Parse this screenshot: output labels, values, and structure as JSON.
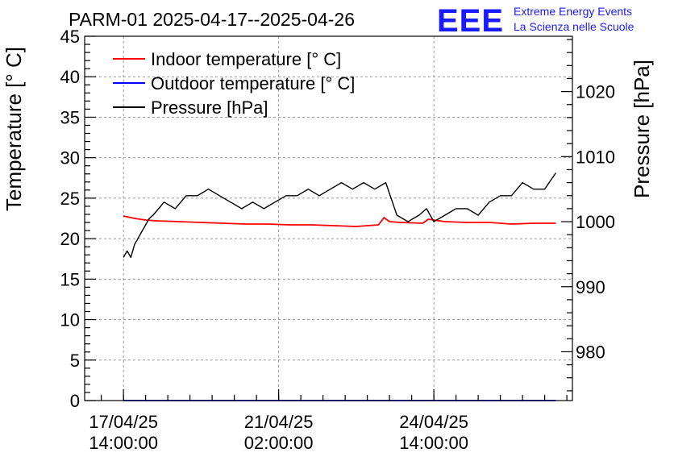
{
  "header": {
    "title": "PARM-01 2025-04-17--2025-04-26",
    "logo": {
      "mark": "EEE",
      "line1": "Extreme Energy Events",
      "line2": "La Scienza nelle Scuole",
      "color": "#1a1aff"
    }
  },
  "chart_data": {
    "type": "line",
    "title": "PARM-01 2025-04-17--2025-04-26",
    "ylabel": "Temperature [° C]",
    "y2label": "Pressure [hPa]",
    "ylim": [
      0,
      45
    ],
    "y2lim": [
      972.5,
      1028.5
    ],
    "xlim": [
      "2025-04-16 17:00",
      "2025-04-27 17:00"
    ],
    "grid": true,
    "legend_position": "top-left",
    "y_ticks": [
      "0",
      "5",
      "10",
      "15",
      "20",
      "25",
      "30",
      "35",
      "40",
      "45"
    ],
    "y2_ticks": [
      "980",
      "990",
      "1000",
      "1010",
      "1020"
    ],
    "x_tick_labels": [
      {
        "x": "2025-04-17 14:00",
        "date": "17/04/25",
        "time": "14:00:00"
      },
      {
        "x": "2025-04-21 02:00",
        "date": "21/04/25",
        "time": "02:00:00"
      },
      {
        "x": "2025-04-24 14:00",
        "date": "24/04/25",
        "time": "14:00:00"
      }
    ],
    "series": [
      {
        "name": "Indoor temperature [° C]",
        "axis": "left",
        "color": "#ff0000",
        "points": [
          [
            "2025-04-17 14:00",
            22.8
          ],
          [
            "2025-04-17 20:00",
            22.5
          ],
          [
            "2025-04-18 02:00",
            22.3
          ],
          [
            "2025-04-18 08:00",
            22.2
          ],
          [
            "2025-04-18 20:00",
            22.1
          ],
          [
            "2025-04-19 08:00",
            22.0
          ],
          [
            "2025-04-19 20:00",
            21.9
          ],
          [
            "2025-04-20 08:00",
            21.8
          ],
          [
            "2025-04-20 20:00",
            21.8
          ],
          [
            "2025-04-21 08:00",
            21.7
          ],
          [
            "2025-04-21 20:00",
            21.7
          ],
          [
            "2025-04-22 08:00",
            21.6
          ],
          [
            "2025-04-22 20:00",
            21.5
          ],
          [
            "2025-04-23 02:00",
            21.6
          ],
          [
            "2025-04-23 08:00",
            21.7
          ],
          [
            "2025-04-23 11:00",
            22.6
          ],
          [
            "2025-04-23 14:00",
            22.1
          ],
          [
            "2025-04-23 20:00",
            22.0
          ],
          [
            "2025-04-24 08:00",
            21.9
          ],
          [
            "2025-04-24 11:00",
            22.4
          ],
          [
            "2025-04-24 20:00",
            22.1
          ],
          [
            "2025-04-25 08:00",
            22.0
          ],
          [
            "2025-04-25 20:00",
            22.0
          ],
          [
            "2025-04-26 08:00",
            21.8
          ],
          [
            "2025-04-26 20:00",
            21.9
          ],
          [
            "2025-04-27 08:00",
            21.9
          ]
        ]
      },
      {
        "name": "Outdoor temperature [° C]",
        "axis": "left",
        "color": "#0000ff",
        "points": [
          [
            "2025-04-17 14:00",
            0
          ],
          [
            "2025-04-27 08:00",
            0
          ]
        ]
      },
      {
        "name": "Pressure [hPa]",
        "axis": "right",
        "color": "#000000",
        "points": [
          [
            "2025-04-17 14:00",
            994.5
          ],
          [
            "2025-04-17 16:00",
            995.5
          ],
          [
            "2025-04-17 18:00",
            994.5
          ],
          [
            "2025-04-17 20:00",
            996.5
          ],
          [
            "2025-04-17 22:00",
            997.5
          ],
          [
            "2025-04-18 00:00",
            998.5
          ],
          [
            "2025-04-18 02:00",
            999.5
          ],
          [
            "2025-04-18 04:00",
            1000.5
          ],
          [
            "2025-04-18 06:00",
            1001.0
          ],
          [
            "2025-04-18 09:00",
            1002.0
          ],
          [
            "2025-04-18 12:00",
            1003.0
          ],
          [
            "2025-04-18 18:00",
            1002.0
          ],
          [
            "2025-04-19 00:00",
            1004.0
          ],
          [
            "2025-04-19 06:00",
            1004.0
          ],
          [
            "2025-04-19 12:00",
            1005.0
          ],
          [
            "2025-04-19 18:00",
            1004.0
          ],
          [
            "2025-04-20 00:00",
            1003.0
          ],
          [
            "2025-04-20 06:00",
            1002.0
          ],
          [
            "2025-04-20 12:00",
            1003.0
          ],
          [
            "2025-04-20 18:00",
            1002.0
          ],
          [
            "2025-04-21 00:00",
            1003.0
          ],
          [
            "2025-04-21 06:00",
            1004.0
          ],
          [
            "2025-04-21 12:00",
            1004.0
          ],
          [
            "2025-04-21 18:00",
            1005.0
          ],
          [
            "2025-04-22 00:00",
            1004.0
          ],
          [
            "2025-04-22 06:00",
            1005.0
          ],
          [
            "2025-04-22 12:00",
            1006.0
          ],
          [
            "2025-04-22 18:00",
            1005.0
          ],
          [
            "2025-04-23 00:00",
            1006.0
          ],
          [
            "2025-04-23 06:00",
            1005.0
          ],
          [
            "2025-04-23 12:00",
            1006.0
          ],
          [
            "2025-04-23 18:00",
            1001.0
          ],
          [
            "2025-04-24 00:00",
            1000.0
          ],
          [
            "2025-04-24 06:00",
            1001.0
          ],
          [
            "2025-04-24 10:00",
            1002.0
          ],
          [
            "2025-04-24 14:00",
            1000.0
          ],
          [
            "2025-04-24 20:00",
            1001.0
          ],
          [
            "2025-04-25 02:00",
            1002.0
          ],
          [
            "2025-04-25 08:00",
            1002.0
          ],
          [
            "2025-04-25 14:00",
            1001.0
          ],
          [
            "2025-04-25 20:00",
            1003.0
          ],
          [
            "2025-04-26 02:00",
            1004.0
          ],
          [
            "2025-04-26 08:00",
            1004.0
          ],
          [
            "2025-04-26 14:00",
            1006.0
          ],
          [
            "2025-04-26 20:00",
            1005.0
          ],
          [
            "2025-04-27 02:00",
            1005.0
          ],
          [
            "2025-04-27 08:00",
            1007.5
          ]
        ]
      }
    ]
  }
}
